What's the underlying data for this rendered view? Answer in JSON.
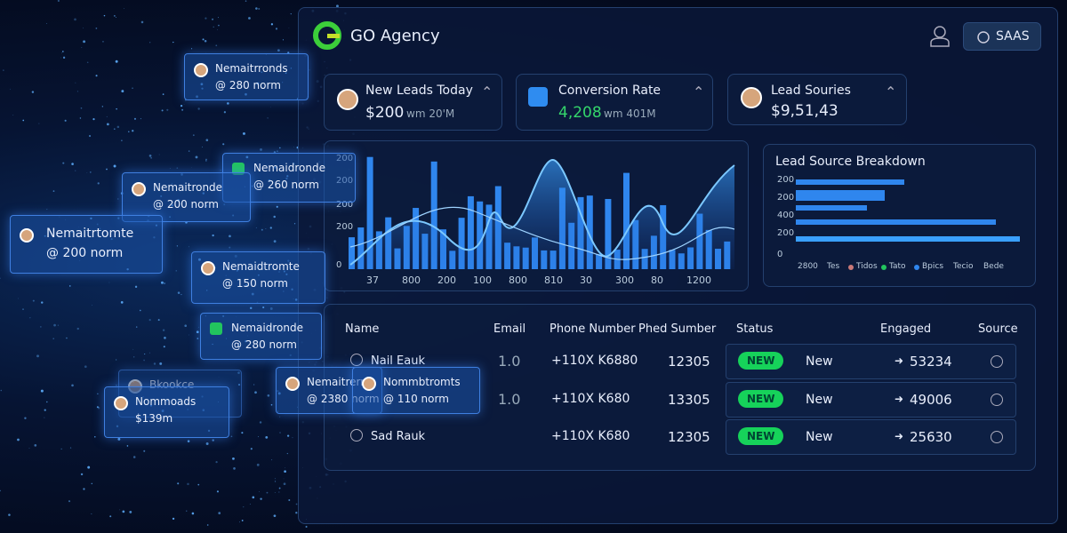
{
  "header": {
    "brand": "GO Agency",
    "button": "SAAS"
  },
  "kpis": [
    {
      "title": "New Leads Today",
      "value": "$200",
      "sub": "wm 20'M"
    },
    {
      "title": "Conversion Rate",
      "value": "4,208",
      "sub": "wm 401M"
    },
    {
      "title": "Lead Souries",
      "value": "$9,51,43"
    }
  ],
  "main_chart": {
    "y_labels": [
      "200",
      "200",
      "200",
      "200",
      "0"
    ],
    "x_labels": [
      "37",
      "800",
      "200",
      "100",
      "800",
      "810",
      "30",
      "300",
      "80",
      "1200"
    ]
  },
  "breakdown": {
    "title": "Lead Source Breakdown",
    "y_labels": [
      "200",
      "200",
      "400",
      "200",
      "0"
    ],
    "legend": [
      "2800",
      "Tes",
      "Tidos",
      "Tato",
      "Bpics",
      "Tecio",
      "Bede"
    ]
  },
  "table": {
    "headers": [
      "Name",
      "Email",
      "Phone Number",
      "Phed Sumber",
      "Status",
      "Engaged",
      "Source"
    ],
    "rows": [
      {
        "name": "Nail Eauk",
        "email": "1.0",
        "phone": "+110X K6880",
        "number": "12305",
        "badge": "NEW",
        "status": "New",
        "engaged": "53234"
      },
      {
        "email": "1.0",
        "phone": "+110X K680",
        "number": "13305",
        "badge": "NEW",
        "status": "New",
        "engaged": "49006"
      },
      {
        "name": "Sad Rauk",
        "phone": "+110X K680",
        "number": "12305",
        "badge": "NEW",
        "status": "New",
        "engaged": "25630"
      }
    ]
  },
  "floating_cards": [
    {
      "name": "Nemaitrronds",
      "sub": "@ 280 norm"
    },
    {
      "name": "Nemaidronde",
      "sub": "@ 260 norm"
    },
    {
      "name": "Nemaitronde",
      "sub": "@ 200 norm"
    },
    {
      "name": "Nemaitrtomte",
      "sub": "@ 200 norm"
    },
    {
      "name": "Nemaidtromte",
      "sub": "@ 150 norm"
    },
    {
      "name": "Nemaidronde",
      "sub": "@ 280 norm"
    },
    {
      "name": "Bkookce"
    },
    {
      "name": "Nommoads",
      "sub": "$139m"
    },
    {
      "name": "Nemaitrerns",
      "sub": "@ 2380 norm"
    },
    {
      "name": "Nommbtromts",
      "sub": "@ 110 norm"
    }
  ]
}
